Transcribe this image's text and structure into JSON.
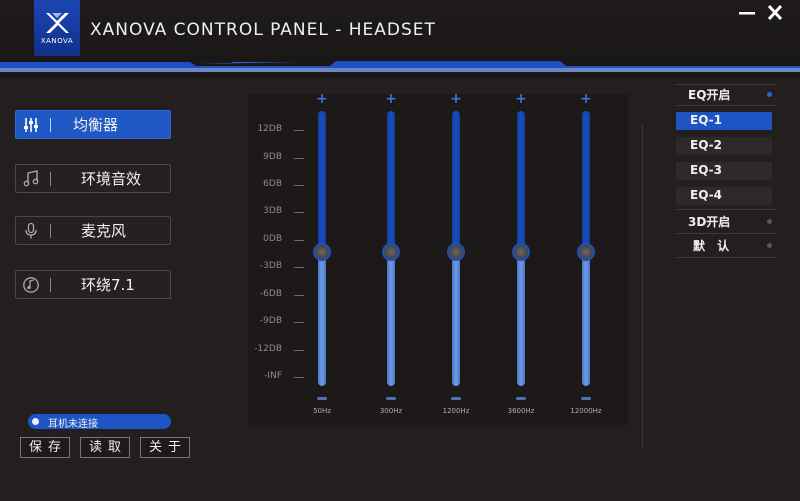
{
  "app": {
    "logo_text": "XANOVA",
    "title": "XANOVA CONTROL PANEL - HEADSET",
    "minimize_icon": "minimize-icon",
    "close_icon": "close-icon",
    "accent_color": "#1e55c4"
  },
  "nav": {
    "items": [
      {
        "label": "均衡器",
        "icon": "equalizer-sliders-icon",
        "active": true
      },
      {
        "label": "环境音效",
        "icon": "music-note-icon",
        "active": false
      },
      {
        "label": "麦克风",
        "icon": "microphone-icon",
        "active": false
      },
      {
        "label": "环绕7.1",
        "icon": "surround-disc-icon",
        "active": false
      }
    ]
  },
  "status": {
    "text": "耳机未连接"
  },
  "buttons": {
    "save": "保存",
    "load": "读取",
    "about": "关于"
  },
  "eq": {
    "db_labels": [
      "12DB",
      "9DB",
      "6DB",
      "3DB",
      "0DB",
      "-3DB",
      "-6DB",
      "-9DB",
      "-12DB",
      "-INF"
    ],
    "bands": [
      {
        "freq": "50Hz",
        "value_db": 0
      },
      {
        "freq": "300Hz",
        "value_db": 0
      },
      {
        "freq": "1200Hz",
        "value_db": 0
      },
      {
        "freq": "3600Hz",
        "value_db": 0
      },
      {
        "freq": "12000Hz",
        "value_db": 0
      }
    ],
    "plus_symbol": "+"
  },
  "menu": {
    "eq_on": "EQ开启",
    "presets": [
      "EQ-1",
      "EQ-2",
      "EQ-3",
      "EQ-4"
    ],
    "active_preset": "EQ-1",
    "three_d_on": "3D开启",
    "default": "默 认"
  }
}
